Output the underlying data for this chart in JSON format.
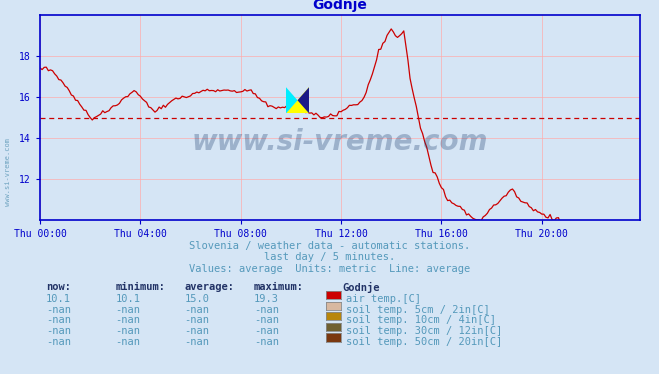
{
  "title": "Godnje",
  "title_color": "#0000cc",
  "background_color": "#d5e5f5",
  "plot_bg_color": "#d5e5f5",
  "line_color": "#cc0000",
  "avg_line_color": "#cc0000",
  "avg_line_value": 15.0,
  "grid_color": "#ffaaaa",
  "axis_color": "#0000cc",
  "tick_color": "#0000cc",
  "xlim": [
    0,
    287
  ],
  "ylim": [
    10.0,
    20.0
  ],
  "yticks": [
    12,
    14,
    16,
    18
  ],
  "xtick_positions": [
    0,
    48,
    96,
    144,
    192,
    240
  ],
  "xtick_labels": [
    "Thu 00:00",
    "Thu 04:00",
    "Thu 08:00",
    "Thu 12:00",
    "Thu 16:00",
    "Thu 20:00"
  ],
  "subtitle1": "Slovenia / weather data - automatic stations.",
  "subtitle2": "last day / 5 minutes.",
  "subtitle3": "Values: average  Units: metric  Line: average",
  "subtitle_color": "#5599bb",
  "legend_header": [
    "now:",
    "minimum:",
    "average:",
    "maximum:",
    "Godnje"
  ],
  "legend_row1": [
    "10.1",
    "10.1",
    "15.0",
    "19.3",
    "air temp.[C]",
    "#cc0000"
  ],
  "legend_row2": [
    "-nan",
    "-nan",
    "-nan",
    "-nan",
    "soil temp. 5cm / 2in[C]",
    "#d8b8a0"
  ],
  "legend_row3": [
    "-nan",
    "-nan",
    "-nan",
    "-nan",
    "soil temp. 10cm / 4in[C]",
    "#b8860b"
  ],
  "legend_row4": [
    "-nan",
    "-nan",
    "-nan",
    "-nan",
    "soil temp. 30cm / 12in[C]",
    "#706030"
  ],
  "legend_row5": [
    "-nan",
    "-nan",
    "-nan",
    "-nan",
    "soil temp. 50cm / 20in[C]",
    "#7a3810"
  ],
  "watermark_text": "www.si-vreme.com",
  "watermark_color": "#1a3a6a",
  "watermark_alpha": 0.3,
  "left_label": "www.si-vreme.com",
  "left_label_color": "#4488aa"
}
